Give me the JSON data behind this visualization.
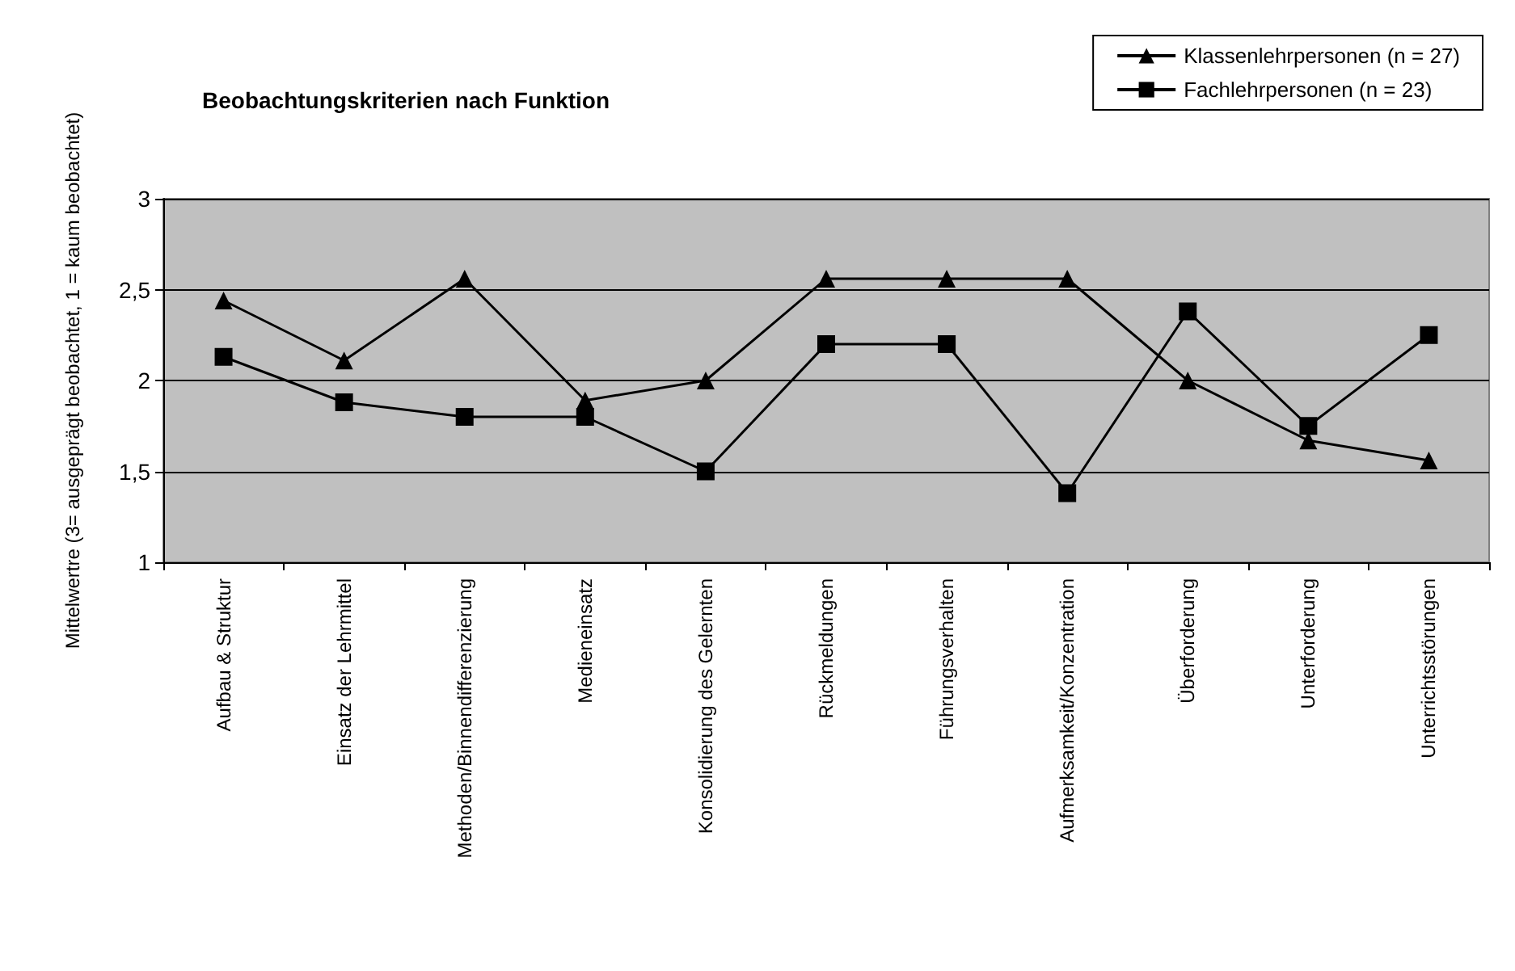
{
  "chart_data": {
    "type": "line",
    "title": "Beobachtungskriterien nach Funktion",
    "ylabel": "Mittelwertre (3= ausgeprägt beobachtet, 1 = kaum beobachtet)",
    "categories": [
      "Aufbau & Struktur",
      "Einsatz der Lehrmittel",
      "Methoden/Binnendifferenzierung",
      "Medieneinsatz",
      "Konsolidierung des Gelernten",
      "Rückmeldungen",
      "Führungsverhalten",
      "Aufmerksamkeit/Konzentration",
      "Überforderung",
      "Unterforderung",
      "Unterrichtsstörungen"
    ],
    "series": [
      {
        "name": "Klassenlehrpersonen (n = 27)",
        "color": "#000000",
        "marker": "triangle",
        "values": [
          2.44,
          2.11,
          2.56,
          1.89,
          2.0,
          2.56,
          2.56,
          2.56,
          2.0,
          1.67,
          1.56
        ]
      },
      {
        "name": "Fachlehrpersonen (n = 23)",
        "color": "#000000",
        "marker": "square",
        "values": [
          2.13,
          1.88,
          1.8,
          1.8,
          1.5,
          2.2,
          2.2,
          1.38,
          2.38,
          1.75,
          2.25
        ]
      }
    ],
    "ylim": [
      1,
      3
    ],
    "yticks": [
      1,
      {
        "value": 1.5,
        "label": "1,5"
      },
      2,
      {
        "value": 2.5,
        "label": "2,5"
      },
      3
    ],
    "grid": "y",
    "legend": "top right",
    "line_style": "solid"
  }
}
